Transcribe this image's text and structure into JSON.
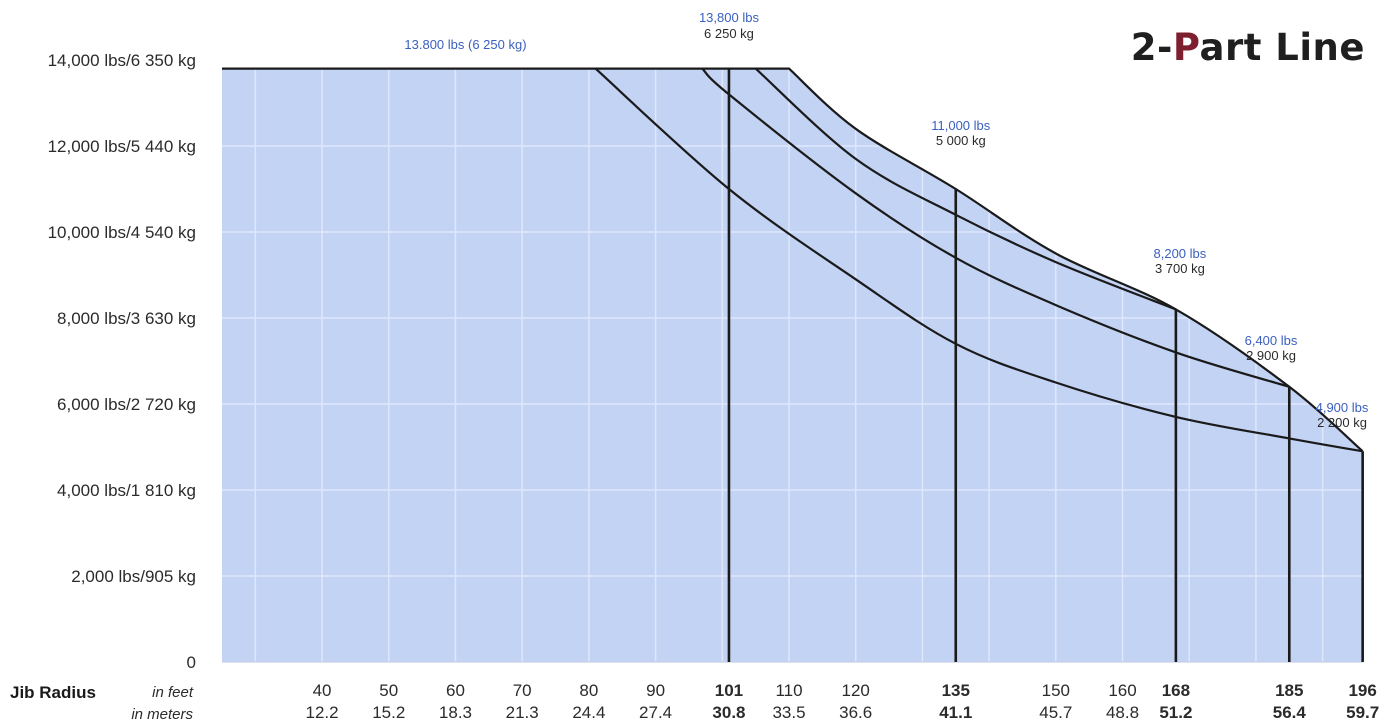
{
  "title": {
    "prefix": "2-",
    "accent": "P",
    "suffix": "art Line"
  },
  "colors": {
    "fill": "#c3d3f4",
    "grid": "#dfe7fb",
    "envelope": "#1a1a1a",
    "annotation_lbs": "#3a5fbf",
    "text": "#2b2b2b",
    "accent": "#7d1f2e"
  },
  "chart_data": {
    "type": "area",
    "title": "2-Part Line",
    "xlabel": "Jib Radius",
    "x_units_label": "in feet",
    "x_units_label_2": "in meters",
    "xlim": [
      25,
      198
    ],
    "ylim": [
      0,
      14000
    ],
    "grid": true,
    "y_ticks": [
      {
        "value": 0,
        "label": "0"
      },
      {
        "value": 2000,
        "label": "2,000 lbs/905 kg"
      },
      {
        "value": 4000,
        "label": "4,000 lbs/1 810 kg"
      },
      {
        "value": 6000,
        "label": "6,000 lbs/2 720 kg"
      },
      {
        "value": 8000,
        "label": "8,000 lbs/3 630 kg"
      },
      {
        "value": 10000,
        "label": "10,000 lbs/4 540 kg"
      },
      {
        "value": 12000,
        "label": "12,000 lbs/5 440 kg"
      },
      {
        "value": 14000,
        "label": "14,000 lbs/6 350 kg"
      }
    ],
    "x_ticks": [
      {
        "ft": 40,
        "ft_label": "40",
        "m_label": "12.2",
        "bold": false
      },
      {
        "ft": 50,
        "ft_label": "50",
        "m_label": "15.2",
        "bold": false
      },
      {
        "ft": 60,
        "ft_label": "60",
        "m_label": "18.3",
        "bold": false
      },
      {
        "ft": 70,
        "ft_label": "70",
        "m_label": "21.3",
        "bold": false
      },
      {
        "ft": 80,
        "ft_label": "80",
        "m_label": "24.4",
        "bold": false
      },
      {
        "ft": 90,
        "ft_label": "90",
        "m_label": "27.4",
        "bold": false
      },
      {
        "ft": 101,
        "ft_label": "101",
        "m_label": "30.8",
        "bold": true
      },
      {
        "ft": 110,
        "ft_label": "110",
        "m_label": "33.5",
        "bold": false
      },
      {
        "ft": 120,
        "ft_label": "120",
        "m_label": "36.6",
        "bold": false
      },
      {
        "ft": 135,
        "ft_label": "135",
        "m_label": "41.1",
        "bold": true
      },
      {
        "ft": 150,
        "ft_label": "150",
        "m_label": "45.7",
        "bold": false
      },
      {
        "ft": 160,
        "ft_label": "160",
        "m_label": "48.8",
        "bold": false
      },
      {
        "ft": 168,
        "ft_label": "168",
        "m_label": "51.2",
        "bold": true
      },
      {
        "ft": 185,
        "ft_label": "185",
        "m_label": "56.4",
        "bold": true
      },
      {
        "ft": 196,
        "ft_label": "196",
        "m_label": "59.7",
        "bold": true
      }
    ],
    "series": [
      {
        "jib_ft": 101,
        "flat_end_ft": 100.5,
        "x": [
          25,
          100.5,
          101
        ],
        "y": [
          13800,
          13800,
          13800
        ]
      },
      {
        "jib_ft": 135,
        "flat_end_ft": 110,
        "x": [
          25,
          110,
          120,
          135
        ],
        "y": [
          13800,
          13800,
          12400,
          11000
        ]
      },
      {
        "jib_ft": 168,
        "flat_end_ft": 105,
        "x": [
          25,
          105,
          120,
          135,
          150,
          168
        ],
        "y": [
          13800,
          13800,
          11700,
          10400,
          9300,
          8200
        ]
      },
      {
        "jib_ft": 185,
        "flat_end_ft": 97,
        "x": [
          25,
          97,
          101,
          120,
          135,
          150,
          168,
          185
        ],
        "y": [
          13800,
          13800,
          13200,
          10900,
          9400,
          8300,
          7200,
          6400
        ]
      },
      {
        "jib_ft": 196,
        "flat_end_ft": 81,
        "x": [
          25,
          81,
          101,
          120,
          135,
          150,
          168,
          185,
          196
        ],
        "y": [
          13800,
          13800,
          11000,
          8900,
          7400,
          6500,
          5700,
          5200,
          4900
        ]
      }
    ],
    "annotations": [
      {
        "x": 60,
        "y": 13800,
        "lbs": "13.800 lbs (6 250 kg)",
        "kg": ""
      },
      {
        "x": 101,
        "y": 13800,
        "lbs": "13,800 lbs",
        "kg": "6 250 kg"
      },
      {
        "x": 135,
        "y": 11000,
        "lbs": "11,000 lbs",
        "kg": "5 000 kg"
      },
      {
        "x": 168,
        "y": 8200,
        "lbs": "8,200 lbs",
        "kg": "3 700 kg"
      },
      {
        "x": 185,
        "y": 6400,
        "lbs": "6,400 lbs",
        "kg": "2 900 kg"
      },
      {
        "x": 196,
        "y": 4900,
        "lbs": "4,900 lbs",
        "kg": "2 200 kg"
      }
    ]
  }
}
